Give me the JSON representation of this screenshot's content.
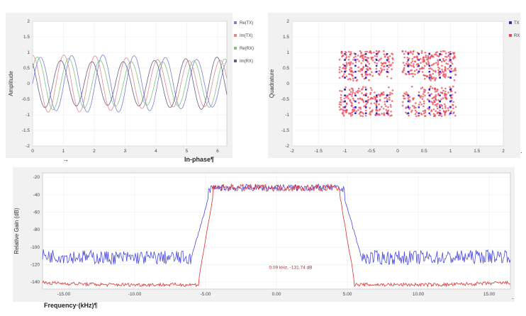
{
  "captions": {
    "inphase": "In-phase¶",
    "frequency": "Frequency·(kHz)¶",
    "arrow": "→",
    "dot1": ".",
    "dot2": "."
  },
  "chart_data": [
    {
      "type": "line",
      "ylabel": "Amplitude",
      "xlabel": "",
      "xlim": [
        0,
        6.3
      ],
      "ylim": [
        -2,
        2
      ],
      "x_ticks": [
        0,
        1,
        2,
        3,
        4,
        5,
        6
      ],
      "y_ticks": [
        -2,
        -1.5,
        -1,
        -0.5,
        0,
        0.5,
        1,
        1.5,
        2
      ],
      "grid": true,
      "legend": "top-right",
      "series": [
        {
          "name": "Re(TX)",
          "color": "#7b7be0",
          "freq": 3.1,
          "phase": 0.0,
          "amp": 0.9
        },
        {
          "name": "Im(TX)",
          "color": "#e08a8a",
          "freq": 3.1,
          "phase": 1.57,
          "amp": 0.9
        },
        {
          "name": "Re(RX)",
          "color": "#7fc37f",
          "freq": 3.1,
          "phase": 0.6,
          "amp": 0.85
        },
        {
          "name": "Im(RX)",
          "color": "#6a5a8a",
          "freq": 3.1,
          "phase": 2.2,
          "amp": 0.85
        }
      ]
    },
    {
      "type": "scatter",
      "ylabel": "Quadrature",
      "xlabel": "",
      "xlim": [
        -2,
        2
      ],
      "ylim": [
        -2,
        2
      ],
      "x_ticks": [
        -2,
        -1.5,
        -1,
        -0.5,
        0,
        0.5,
        1,
        1.5,
        2
      ],
      "y_ticks": [
        -2,
        -1.5,
        -1,
        -0.5,
        0,
        0.5,
        1,
        1.5,
        2
      ],
      "grid": true,
      "legend": "top-right",
      "series": [
        {
          "name": "TX",
          "color": "#2a2ad0"
        },
        {
          "name": "RX",
          "color": "#e84a5a"
        }
      ],
      "constellation_levels": [
        -1,
        -0.8,
        -0.6,
        -0.4,
        -0.2,
        0.2,
        0.4,
        0.6,
        0.8,
        1
      ],
      "point_extent": 1.05
    },
    {
      "type": "line",
      "ylabel": "Relative Gain (dB)",
      "xlabel": "",
      "xlim": [
        -16.5,
        16.5
      ],
      "ylim": [
        -148,
        -15
      ],
      "x_ticks": [
        -15,
        -10,
        -5,
        0,
        5,
        10,
        15
      ],
      "x_tick_labels": [
        "-15.00",
        "-10.00",
        "-5.00",
        "0.00",
        "5.00",
        "10.00",
        "15.00"
      ],
      "y_ticks": [
        -140,
        -120,
        -100,
        -80,
        -60,
        -40,
        -20
      ],
      "grid": true,
      "series": [
        {
          "name": "",
          "color": "#4a4ae0",
          "passband": -32,
          "stopband": -112,
          "edge": 6.0
        },
        {
          "name": "",
          "color": "#e03030",
          "passband": -32,
          "stopband": -143,
          "edge": 5.5
        }
      ],
      "annotation": {
        "text": "0.09 kHz, -131.74 dB",
        "x": 1.0,
        "y": -125
      }
    }
  ]
}
